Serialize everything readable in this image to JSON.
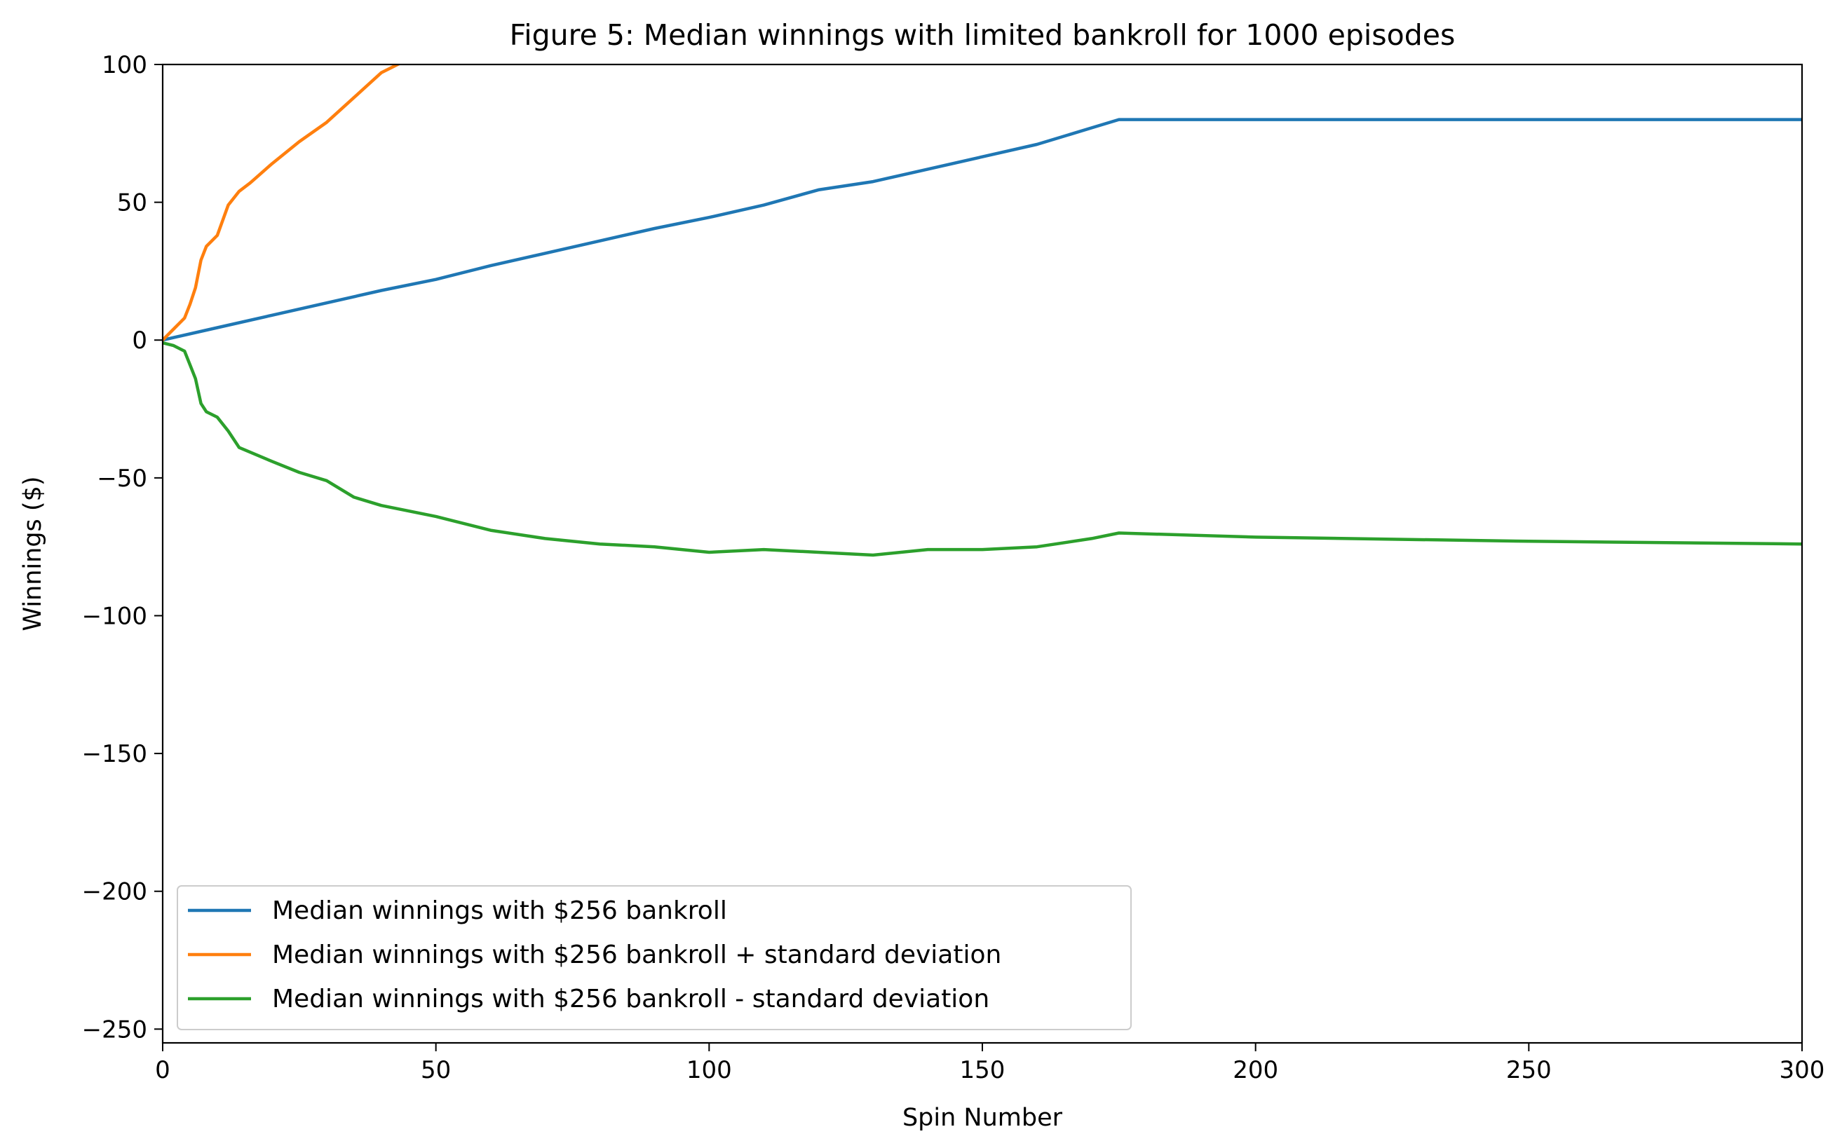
{
  "chart_data": {
    "type": "line",
    "title": "Figure 5: Median winnings with limited bankroll for 1000 episodes",
    "xlabel": "Spin Number",
    "ylabel": "Winnings ($)",
    "xlim": [
      0,
      300
    ],
    "ylim": [
      -255,
      100
    ],
    "x_ticks": [
      0,
      50,
      100,
      150,
      200,
      250,
      300
    ],
    "x_tick_labels": [
      "0",
      "50",
      "100",
      "150",
      "200",
      "250",
      "300"
    ],
    "y_ticks": [
      100,
      50,
      0,
      -50,
      -100,
      -150,
      -200,
      -250
    ],
    "y_tick_labels": [
      "100",
      "50",
      "0",
      "−50",
      "−100",
      "−150",
      "−200",
      "−250"
    ],
    "grid": false,
    "legend_position": "lower-left",
    "series": [
      {
        "name": "Median winnings with $256 bankroll",
        "color": "#1f77b4",
        "x": [
          0,
          10,
          20,
          30,
          40,
          50,
          60,
          70,
          80,
          90,
          100,
          110,
          120,
          130,
          140,
          150,
          160,
          170,
          175,
          200,
          250,
          300
        ],
        "y": [
          0,
          4.5,
          9,
          13.5,
          18,
          22,
          27,
          31.5,
          36,
          40.5,
          44.5,
          49,
          54.5,
          57.5,
          62,
          66.5,
          71,
          77,
          80,
          80,
          80,
          80
        ]
      },
      {
        "name": "Median winnings with $256 bankroll + standard deviation",
        "color": "#ff7f0e",
        "x": [
          0,
          2,
          4,
          5,
          6,
          7,
          8,
          10,
          12,
          14,
          16,
          20,
          25,
          30,
          35,
          40,
          43,
          44
        ],
        "y": [
          0,
          4,
          8,
          13,
          19,
          29,
          34,
          38,
          49,
          54,
          57,
          64,
          72,
          79,
          88,
          97,
          100,
          101
        ]
      },
      {
        "name": "Median winnings with $256 bankroll - standard deviation",
        "color": "#2ca02c",
        "x": [
          0,
          2,
          4,
          5,
          6,
          7,
          8,
          10,
          12,
          14,
          20,
          25,
          30,
          35,
          40,
          50,
          60,
          70,
          80,
          90,
          100,
          110,
          120,
          130,
          140,
          150,
          160,
          170,
          175,
          200,
          250,
          300
        ],
        "y": [
          -1,
          -2,
          -4,
          -9,
          -14,
          -23,
          -26,
          -28,
          -33,
          -39,
          -44,
          -48,
          -51,
          -57,
          -60,
          -64,
          -69,
          -72,
          -74,
          -75,
          -77,
          -76,
          -77,
          -78,
          -76,
          -76,
          -75,
          -72,
          -70,
          -71.5,
          -73,
          -74
        ]
      }
    ]
  }
}
